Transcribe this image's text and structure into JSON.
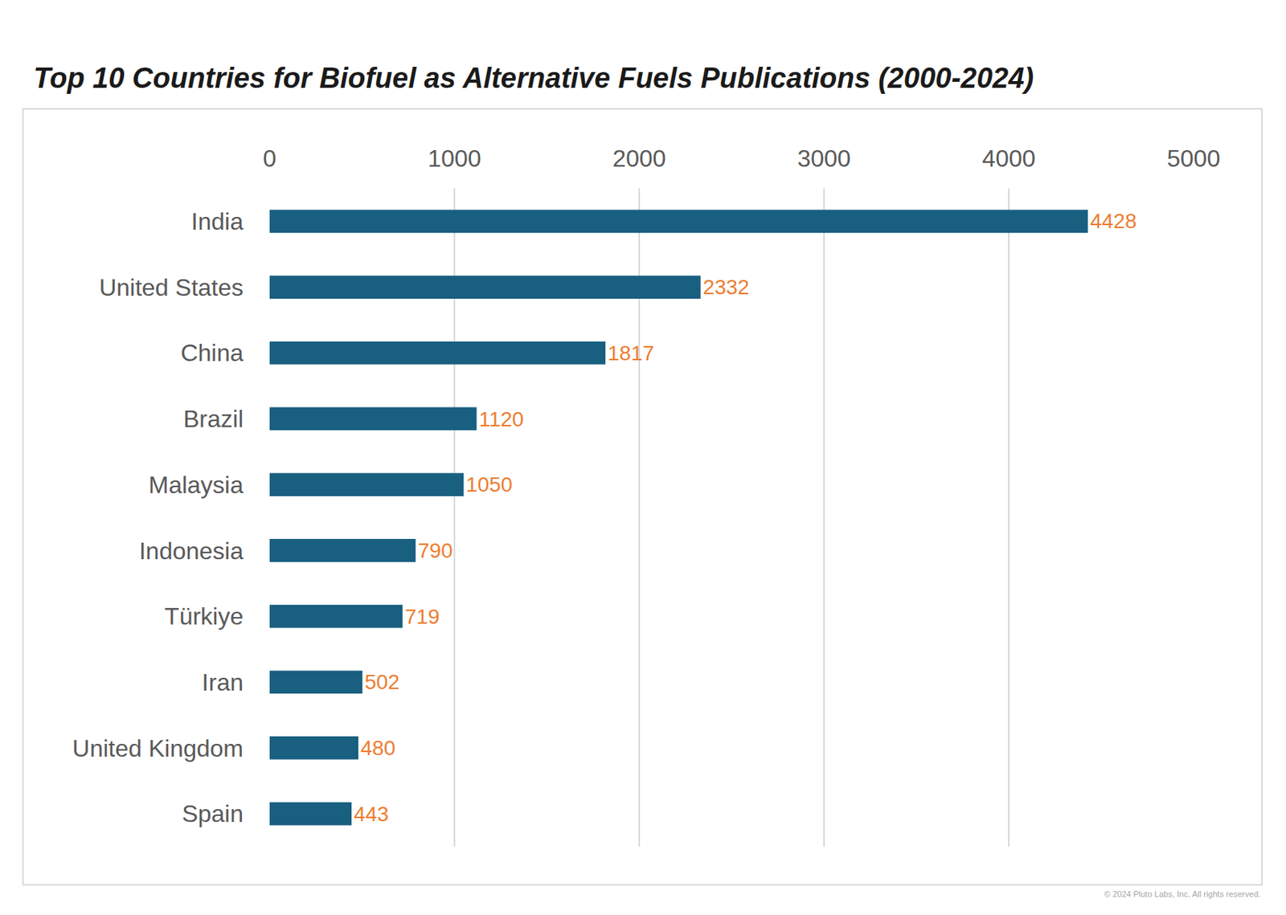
{
  "chart_data": {
    "type": "bar",
    "orientation": "horizontal",
    "title": "Top 10 Countries for Biofuel as Alternative Fuels Publications (2000-2024)",
    "categories": [
      "India",
      "United States",
      "China",
      "Brazil",
      "Malaysia",
      "Indonesia",
      "Türkiye",
      "Iran",
      "United Kingdom",
      "Spain"
    ],
    "values": [
      4428,
      2332,
      1817,
      1120,
      1050,
      790,
      719,
      502,
      480,
      443
    ],
    "color": "#185f80",
    "data_labels": true,
    "xlim": [
      0,
      5000
    ],
    "xticks": [
      0,
      1000,
      2000,
      3000,
      4000,
      5000
    ],
    "grid": true,
    "annotations": [
      "© 2024 Pluto Labs, Inc. All rights reserved."
    ]
  }
}
